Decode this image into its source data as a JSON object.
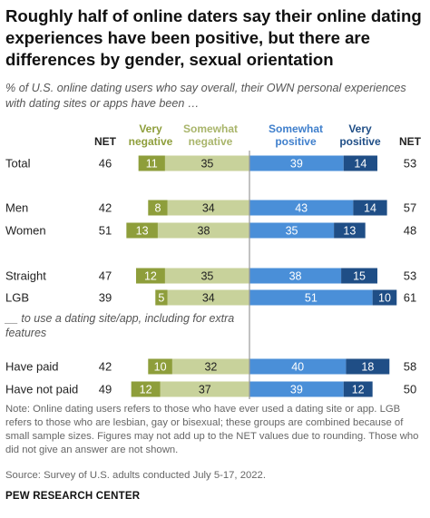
{
  "title": "Roughly half of online daters say their online dating experiences have been positive, but there are differences by gender, sexual orientation",
  "subtitle": "% of U.S. online dating users who say overall, their OWN personal experiences with dating sites or apps have been …",
  "notes": "Note: Online dating users refers to those who have ever used a dating site or app. LGB refers to those who are lesbian, gay or bisexual; these groups are combined because of small sample sizes. Figures may not add up to the NET values due to rounding. Those who did not give an answer are not shown.",
  "source": "Source: Survey of U.S. adults conducted July 5-17, 2022.",
  "brand": "PEW RESEARCH CENTER",
  "colors": {
    "very_negative": "#8e9e3b",
    "somewhat_negative": "#c8d29b",
    "somewhat_positive": "#4a8fd8",
    "very_positive": "#1f4e86",
    "very_negative_label": "#8e9e3b",
    "somewhat_negative_label": "#a9b56b",
    "somewhat_positive_label": "#3f7fcc",
    "very_positive_label": "#1f4e86"
  },
  "chart_data": {
    "type": "bar",
    "orientation": "horizontal-diverging",
    "column_headers": {
      "net_negative": "NET",
      "very_negative": "Very negative",
      "somewhat_negative": "Somewhat negative",
      "somewhat_positive": "Somewhat positive",
      "very_positive": "Very positive",
      "net_positive": "NET"
    },
    "groups": [
      {
        "heading": "",
        "rows": [
          {
            "label": "Total",
            "net_negative": 46,
            "very_negative": 11,
            "somewhat_negative": 35,
            "somewhat_positive": 39,
            "very_positive": 14,
            "net_positive": 53
          }
        ]
      },
      {
        "heading": "",
        "rows": [
          {
            "label": "Men",
            "net_negative": 42,
            "very_negative": 8,
            "somewhat_negative": 34,
            "somewhat_positive": 43,
            "very_positive": 14,
            "net_positive": 57
          },
          {
            "label": "Women",
            "net_negative": 51,
            "very_negative": 13,
            "somewhat_negative": 38,
            "somewhat_positive": 35,
            "very_positive": 13,
            "net_positive": 48
          }
        ]
      },
      {
        "heading": "",
        "rows": [
          {
            "label": "Straight",
            "net_negative": 47,
            "very_negative": 12,
            "somewhat_negative": 35,
            "somewhat_positive": 38,
            "very_positive": 15,
            "net_positive": 53
          },
          {
            "label": "LGB",
            "net_negative": 39,
            "very_negative": 5,
            "somewhat_negative": 34,
            "somewhat_positive": 51,
            "very_positive": 10,
            "net_positive": 61
          }
        ]
      },
      {
        "heading": "__ to use a dating site/app, including for extra features",
        "rows": [
          {
            "label": "Have paid",
            "net_negative": 42,
            "very_negative": 10,
            "somewhat_negative": 32,
            "somewhat_positive": 40,
            "very_positive": 18,
            "net_positive": 58
          },
          {
            "label": "Have not paid",
            "net_negative": 49,
            "very_negative": 12,
            "somewhat_negative": 37,
            "somewhat_positive": 39,
            "very_positive": 12,
            "net_positive": 50
          }
        ]
      }
    ]
  }
}
